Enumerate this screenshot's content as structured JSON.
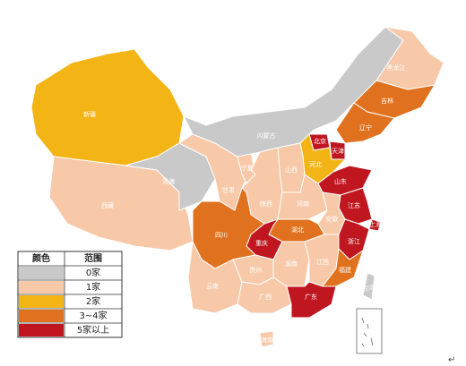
{
  "map": {
    "provinces": [
      {
        "name": "新疆",
        "color": "#f3b416"
      },
      {
        "name": "西藏",
        "color": "#f7c9a9"
      },
      {
        "name": "青海",
        "color": "#c9c9c9"
      },
      {
        "name": "甘肃",
        "color": "#f7c9a9"
      },
      {
        "name": "宁夏",
        "color": "#f7c9a9"
      },
      {
        "name": "内蒙古",
        "color": "#c9c9c9"
      },
      {
        "name": "黑龙江",
        "color": "#f7c9a9"
      },
      {
        "name": "吉林",
        "color": "#e0721f"
      },
      {
        "name": "辽宁",
        "color": "#e0721f"
      },
      {
        "name": "北京",
        "color": "#bf1620"
      },
      {
        "name": "天津",
        "color": "#bf1620"
      },
      {
        "name": "河北",
        "color": "#f3b416"
      },
      {
        "name": "山西",
        "color": "#f7c9a9"
      },
      {
        "name": "山东",
        "color": "#bf1620"
      },
      {
        "name": "陕西",
        "color": "#f7c9a9"
      },
      {
        "name": "河南",
        "color": "#f7c9a9"
      },
      {
        "name": "江苏",
        "color": "#bf1620"
      },
      {
        "name": "上海",
        "color": "#bf1620"
      },
      {
        "name": "安徽",
        "color": "#f7c9a9"
      },
      {
        "name": "湖北",
        "color": "#e0721f"
      },
      {
        "name": "重庆",
        "color": "#bf1620"
      },
      {
        "name": "四川",
        "color": "#e0721f"
      },
      {
        "name": "浙江",
        "color": "#bf1620"
      },
      {
        "name": "湖南",
        "color": "#f7c9a9"
      },
      {
        "name": "江西",
        "color": "#f7c9a9"
      },
      {
        "name": "福建",
        "color": "#e0721f"
      },
      {
        "name": "贵州",
        "color": "#f7c9a9"
      },
      {
        "name": "云南",
        "color": "#f7c9a9"
      },
      {
        "name": "广西",
        "color": "#f7c9a9"
      },
      {
        "name": "广东",
        "color": "#bf1620"
      },
      {
        "name": "台湾",
        "color": "#c9c9c9"
      },
      {
        "name": "海南",
        "color": "#f7c9a9"
      }
    ],
    "legend": {
      "headers": [
        "颜色",
        "范围"
      ],
      "items": [
        {
          "label": "0家",
          "color": "#c9c9c9"
        },
        {
          "label": "1家",
          "color": "#f7c9a9"
        },
        {
          "label": "2家",
          "color": "#f3b416"
        },
        {
          "label": "3~4家",
          "color": "#e0721f"
        },
        {
          "label": "5家以上",
          "color": "#bf1620"
        }
      ]
    },
    "footer_mark": "↵"
  }
}
